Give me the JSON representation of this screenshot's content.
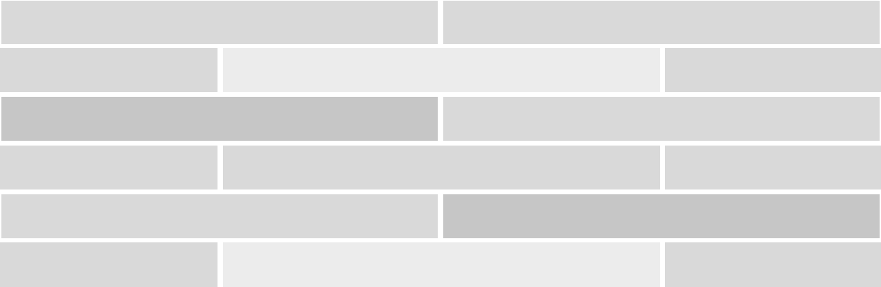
{
  "palette": {
    "base": "#d9d9d9",
    "light": "#ececec",
    "dark": "#c6c6c6"
  },
  "rows": [
    {
      "blocks": [
        "base",
        "base"
      ]
    },
    {
      "blocks": [
        "base",
        "light",
        "base"
      ]
    },
    {
      "blocks": [
        "dark",
        "base"
      ]
    },
    {
      "blocks": [
        "base",
        "base",
        "base"
      ]
    },
    {
      "blocks": [
        "base",
        "dark"
      ]
    },
    {
      "blocks": [
        "base",
        "light",
        "base"
      ]
    }
  ]
}
